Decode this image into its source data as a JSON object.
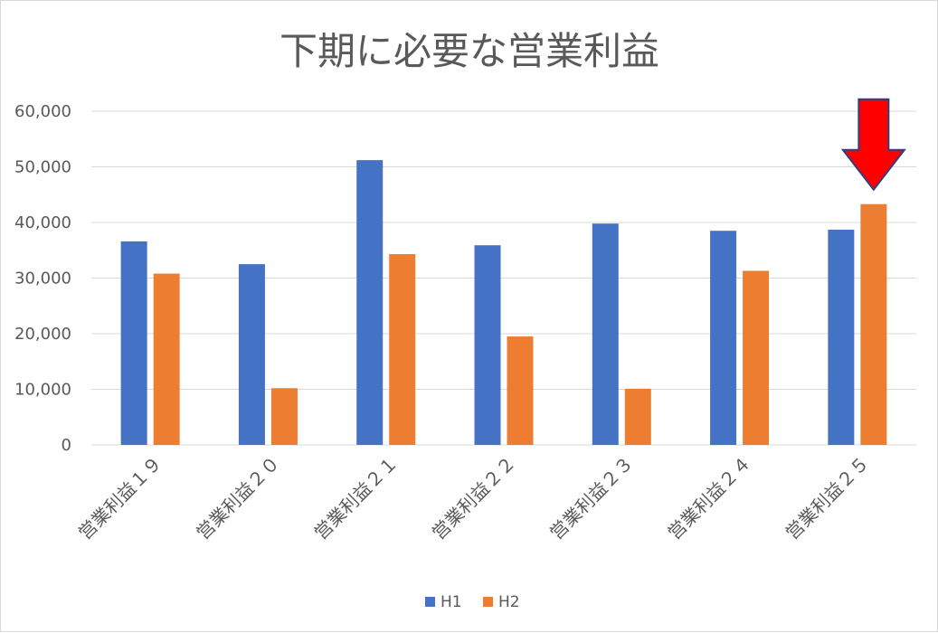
{
  "chart_data": {
    "type": "bar",
    "title": "下期に必要な営業利益",
    "categories": [
      "営業利益１９",
      "営業利益２０",
      "営業利益２１",
      "営業利益２２",
      "営業利益２３",
      "営業利益２４",
      "営業利益２５"
    ],
    "series": [
      {
        "name": "H1",
        "color": "#4472C4",
        "values": [
          36600,
          32500,
          51200,
          35900,
          39800,
          38500,
          38700
        ]
      },
      {
        "name": "H2",
        "color": "#ED7D31",
        "values": [
          30800,
          10200,
          34300,
          19500,
          10100,
          31300,
          43300
        ]
      }
    ],
    "ylim": [
      0,
      60000
    ],
    "yticks": [
      "0",
      "10,000",
      "20,000",
      "30,000",
      "40,000",
      "50,000",
      "60,000"
    ],
    "grid": true,
    "legend_position": "bottom",
    "annotation": {
      "type": "arrow",
      "shape_color": "#FF0000",
      "outline_color": "#2F3F7F",
      "points_to_category_index": 6,
      "points_to_series": "H2"
    }
  }
}
